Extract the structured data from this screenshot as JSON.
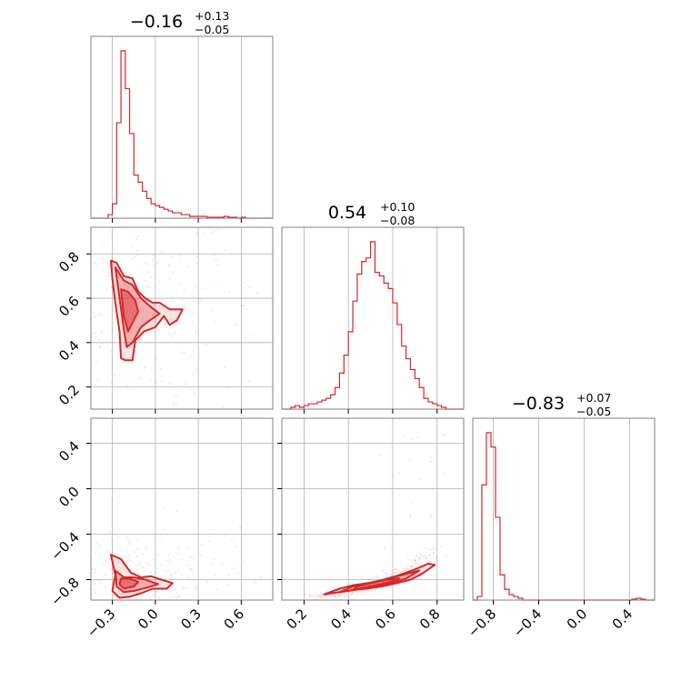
{
  "chart_data": {
    "type": "corner",
    "color": "#d62728",
    "grid": true,
    "parameters": [
      {
        "title_value": "−0.16",
        "title_plus": "+0.13",
        "title_minus": "−0.05",
        "range": [
          -0.45,
          0.82
        ],
        "ticks": [
          -0.3,
          0.0,
          0.3,
          0.6
        ],
        "tick_labels": [
          "−0.3",
          "0.0",
          "0.3",
          "0.6"
        ],
        "hist": {
          "bin_edges": [
            -0.45,
            -0.42,
            -0.39,
            -0.36,
            -0.33,
            -0.3,
            -0.27,
            -0.24,
            -0.21,
            -0.18,
            -0.15,
            -0.12,
            -0.09,
            -0.06,
            -0.03,
            0.0,
            0.03,
            0.06,
            0.09,
            0.12,
            0.15,
            0.18,
            0.21,
            0.24,
            0.27,
            0.3,
            0.33,
            0.36,
            0.39,
            0.42,
            0.45,
            0.48,
            0.51,
            0.54,
            0.57,
            0.6,
            0.63,
            0.66,
            0.69,
            0.72,
            0.75,
            0.78,
            0.82
          ],
          "counts": [
            0,
            0,
            0,
            0,
            0.02,
            0.08,
            0.53,
            0.93,
            0.72,
            0.47,
            0.24,
            0.2,
            0.15,
            0.11,
            0.08,
            0.07,
            0.06,
            0.05,
            0.04,
            0.03,
            0.03,
            0.02,
            0.02,
            0.01,
            0.01,
            0.01,
            0.01,
            0.005,
            0.005,
            0.005,
            0.005,
            0.01,
            0.005,
            0.005,
            0,
            0.005,
            0,
            0,
            0,
            0,
            0,
            0
          ]
        }
      },
      {
        "title_value": "0.54",
        "title_plus": "+0.10",
        "title_minus": "−0.08",
        "range": [
          0.1,
          0.92
        ],
        "ticks": [
          0.2,
          0.4,
          0.6,
          0.8
        ],
        "tick_labels": [
          "0.2",
          "0.4",
          "0.6",
          "0.8"
        ],
        "hist": {
          "bin_edges": [
            0.1,
            0.12,
            0.14,
            0.16,
            0.18,
            0.2,
            0.22,
            0.24,
            0.26,
            0.28,
            0.3,
            0.32,
            0.34,
            0.36,
            0.38,
            0.4,
            0.42,
            0.44,
            0.46,
            0.48,
            0.5,
            0.52,
            0.54,
            0.56,
            0.58,
            0.6,
            0.62,
            0.64,
            0.66,
            0.68,
            0.7,
            0.72,
            0.74,
            0.76,
            0.78,
            0.8,
            0.82,
            0.84,
            0.86,
            0.88,
            0.9,
            0.92
          ],
          "counts": [
            0,
            0,
            0.01,
            0.02,
            0.01,
            0.02,
            0.03,
            0.03,
            0.04,
            0.05,
            0.06,
            0.08,
            0.12,
            0.2,
            0.3,
            0.43,
            0.6,
            0.75,
            0.82,
            0.84,
            0.93,
            0.76,
            0.74,
            0.7,
            0.67,
            0.59,
            0.47,
            0.35,
            0.28,
            0.22,
            0.17,
            0.12,
            0.06,
            0.04,
            0.03,
            0.02,
            0.01,
            0,
            0,
            0,
            0
          ]
        }
      },
      {
        "title_value": "−0.83",
        "title_plus": "+0.07",
        "title_minus": "−0.05",
        "range": [
          -0.98,
          0.62
        ],
        "ticks": [
          -0.8,
          -0.4,
          0.0,
          0.4
        ],
        "tick_labels": [
          "−0.8",
          "−0.4",
          "0.0",
          "0.4"
        ],
        "hist": {
          "bin_edges": [
            -0.98,
            -0.94,
            -0.9,
            -0.86,
            -0.82,
            -0.78,
            -0.74,
            -0.7,
            -0.66,
            -0.62,
            -0.58,
            -0.54,
            -0.5,
            -0.46,
            -0.42,
            -0.38,
            -0.34,
            -0.3,
            -0.26,
            -0.22,
            -0.18,
            -0.14,
            -0.1,
            -0.06,
            -0.02,
            0.02,
            0.06,
            0.1,
            0.14,
            0.18,
            0.22,
            0.26,
            0.3,
            0.34,
            0.38,
            0.42,
            0.46,
            0.5,
            0.54,
            0.58,
            0.62
          ],
          "counts": [
            0,
            0.02,
            0.64,
            0.93,
            0.85,
            0.46,
            0.14,
            0.06,
            0.03,
            0.02,
            0.01,
            0,
            0,
            0,
            0,
            0,
            0,
            0,
            0,
            0,
            0,
            0,
            0,
            0,
            0,
            0,
            0,
            0,
            0,
            0,
            0,
            0,
            0,
            0,
            0,
            0.005,
            0.01,
            0.005,
            0,
            0
          ]
        }
      }
    ],
    "pairs": [
      {
        "row": 1,
        "col": 0,
        "contours": [
          [
            [
              -0.31,
              0.77
            ],
            [
              -0.27,
              0.76
            ],
            [
              -0.22,
              0.7
            ],
            [
              -0.16,
              0.69
            ],
            [
              -0.12,
              0.63
            ],
            [
              -0.07,
              0.6
            ],
            [
              -0.02,
              0.58
            ],
            [
              0.03,
              0.58
            ],
            [
              0.1,
              0.55
            ],
            [
              0.19,
              0.55
            ],
            [
              0.15,
              0.5
            ],
            [
              0.1,
              0.48
            ],
            [
              0.06,
              0.52
            ],
            [
              0.0,
              0.47
            ],
            [
              -0.08,
              0.45
            ],
            [
              -0.14,
              0.41
            ],
            [
              -0.16,
              0.32
            ],
            [
              -0.21,
              0.32
            ],
            [
              -0.24,
              0.33
            ],
            [
              -0.25,
              0.45
            ],
            [
              -0.28,
              0.58
            ],
            [
              -0.3,
              0.69
            ]
          ],
          [
            [
              -0.28,
              0.74
            ],
            [
              -0.22,
              0.68
            ],
            [
              -0.16,
              0.66
            ],
            [
              -0.1,
              0.6
            ],
            [
              -0.03,
              0.56
            ],
            [
              0.03,
              0.53
            ],
            [
              -0.04,
              0.5
            ],
            [
              -0.1,
              0.47
            ],
            [
              -0.16,
              0.4
            ],
            [
              -0.2,
              0.38
            ],
            [
              -0.22,
              0.46
            ],
            [
              -0.25,
              0.6
            ]
          ],
          [
            [
              -0.24,
              0.64
            ],
            [
              -0.19,
              0.63
            ],
            [
              -0.14,
              0.59
            ],
            [
              -0.12,
              0.54
            ],
            [
              -0.16,
              0.49
            ],
            [
              -0.19,
              0.45
            ],
            [
              -0.22,
              0.52
            ],
            [
              -0.23,
              0.58
            ]
          ]
        ]
      },
      {
        "row": 2,
        "col": 0,
        "contours": [
          [
            [
              -0.31,
              -0.58
            ],
            [
              -0.24,
              -0.62
            ],
            [
              -0.17,
              -0.74
            ],
            [
              -0.1,
              -0.78
            ],
            [
              -0.03,
              -0.77
            ],
            [
              0.04,
              -0.8
            ],
            [
              0.12,
              -0.83
            ],
            [
              0.08,
              -0.88
            ],
            [
              -0.02,
              -0.88
            ],
            [
              -0.1,
              -0.92
            ],
            [
              -0.18,
              -0.95
            ],
            [
              -0.25,
              -0.96
            ],
            [
              -0.3,
              -0.9
            ],
            [
              -0.28,
              -0.76
            ]
          ],
          [
            [
              -0.28,
              -0.72
            ],
            [
              -0.22,
              -0.78
            ],
            [
              -0.15,
              -0.78
            ],
            [
              -0.07,
              -0.8
            ],
            [
              0.02,
              -0.84
            ],
            [
              -0.06,
              -0.87
            ],
            [
              -0.15,
              -0.9
            ],
            [
              -0.22,
              -0.91
            ],
            [
              -0.27,
              -0.86
            ]
          ],
          [
            [
              -0.24,
              -0.79
            ],
            [
              -0.18,
              -0.79
            ],
            [
              -0.12,
              -0.82
            ],
            [
              -0.15,
              -0.86
            ],
            [
              -0.22,
              -0.88
            ],
            [
              -0.25,
              -0.84
            ]
          ]
        ]
      },
      {
        "row": 2,
        "col": 1,
        "contours": [
          [
            [
              0.29,
              -0.93
            ],
            [
              0.36,
              -0.91
            ],
            [
              0.42,
              -0.89
            ],
            [
              0.48,
              -0.88
            ],
            [
              0.55,
              -0.86
            ],
            [
              0.62,
              -0.83
            ],
            [
              0.68,
              -0.8
            ],
            [
              0.73,
              -0.75
            ],
            [
              0.79,
              -0.67
            ],
            [
              0.76,
              -0.66
            ],
            [
              0.7,
              -0.71
            ],
            [
              0.63,
              -0.76
            ],
            [
              0.56,
              -0.8
            ],
            [
              0.49,
              -0.83
            ],
            [
              0.42,
              -0.85
            ],
            [
              0.36,
              -0.88
            ]
          ],
          [
            [
              0.36,
              -0.91
            ],
            [
              0.43,
              -0.89
            ],
            [
              0.5,
              -0.87
            ],
            [
              0.58,
              -0.84
            ],
            [
              0.66,
              -0.79
            ],
            [
              0.72,
              -0.72
            ],
            [
              0.66,
              -0.75
            ],
            [
              0.58,
              -0.79
            ],
            [
              0.5,
              -0.83
            ],
            [
              0.42,
              -0.86
            ]
          ],
          [
            [
              0.42,
              -0.89
            ],
            [
              0.5,
              -0.86
            ],
            [
              0.57,
              -0.83
            ],
            [
              0.63,
              -0.79
            ],
            [
              0.57,
              -0.8
            ],
            [
              0.5,
              -0.83
            ],
            [
              0.44,
              -0.86
            ]
          ]
        ]
      }
    ]
  }
}
